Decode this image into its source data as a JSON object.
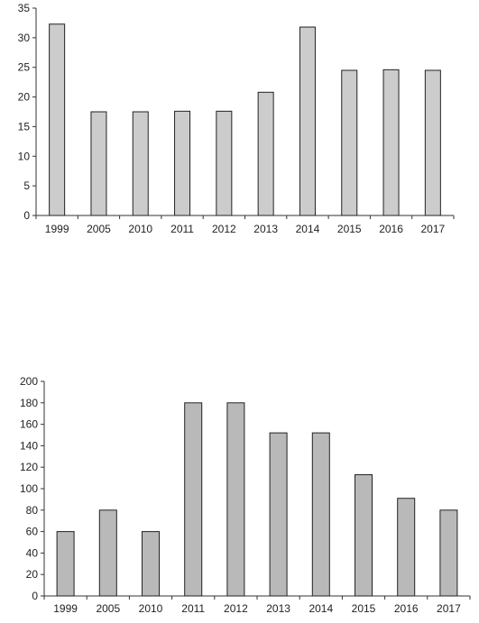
{
  "chart_data": [
    {
      "type": "bar",
      "categories": [
        "1999",
        "2005",
        "2010",
        "2011",
        "2012",
        "2013",
        "2014",
        "2015",
        "2016",
        "2017"
      ],
      "values": [
        32.3,
        17.5,
        17.5,
        17.6,
        17.6,
        20.8,
        31.8,
        24.5,
        24.6,
        24.5
      ],
      "title": "",
      "xlabel": "",
      "ylabel": "",
      "ylim": [
        0,
        35
      ],
      "yticks": [
        0,
        5,
        10,
        15,
        20,
        25,
        30,
        35
      ],
      "grid": false,
      "bar_color": "#cccccc"
    },
    {
      "type": "bar",
      "categories": [
        "1999",
        "2005",
        "2010",
        "2011",
        "2012",
        "2013",
        "2014",
        "2015",
        "2016",
        "2017"
      ],
      "values": [
        60,
        80,
        60,
        180,
        180,
        152,
        152,
        113,
        91,
        80
      ],
      "title": "",
      "xlabel": "",
      "ylabel": "",
      "ylim": [
        0,
        200
      ],
      "yticks": [
        0,
        20,
        40,
        60,
        80,
        100,
        120,
        140,
        160,
        180,
        200
      ],
      "grid": false,
      "bar_color": "#b9b9b9"
    }
  ]
}
